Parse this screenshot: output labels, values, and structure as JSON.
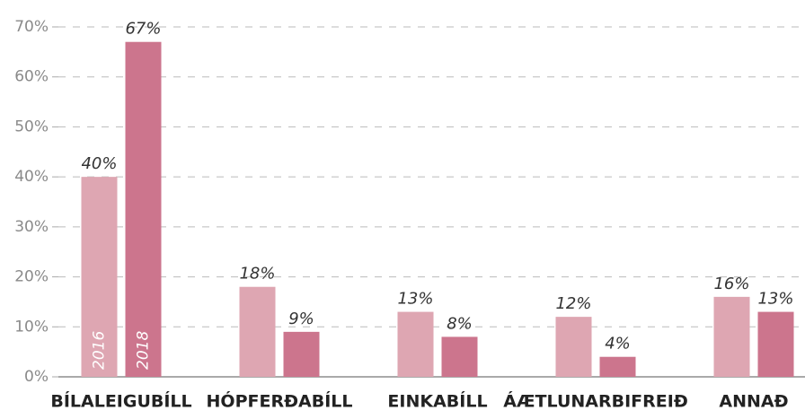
{
  "chart_data": {
    "type": "bar",
    "categories": [
      "BÍLALEIGUBÍLL",
      "HÓPFERÐABÍLL",
      "EINKABÍLL",
      "ÁÆTLUNARBIFREIÐ",
      "ANNAÐ"
    ],
    "series": [
      {
        "name": "2016",
        "color": "#dea6b2",
        "values": [
          40,
          18,
          13,
          12,
          16
        ],
        "value_labels": [
          "40%",
          "18%",
          "13%",
          "12%",
          "16%"
        ]
      },
      {
        "name": "2018",
        "color": "#cc758d",
        "values": [
          67,
          9,
          8,
          4,
          13
        ],
        "value_labels": [
          "67%",
          "9%",
          "8%",
          "4%",
          "13%"
        ]
      }
    ],
    "ylim": [
      0,
      70
    ],
    "yticks": [
      {
        "value": 0,
        "label": "0%"
      },
      {
        "value": 10,
        "label": "10%"
      },
      {
        "value": 20,
        "label": "20%"
      },
      {
        "value": 30,
        "label": "30%"
      },
      {
        "value": 40,
        "label": "40%"
      },
      {
        "value": 50,
        "label": "50%"
      },
      {
        "value": 60,
        "label": "60%"
      },
      {
        "value": 70,
        "label": "70%"
      }
    ],
    "grid": true
  }
}
